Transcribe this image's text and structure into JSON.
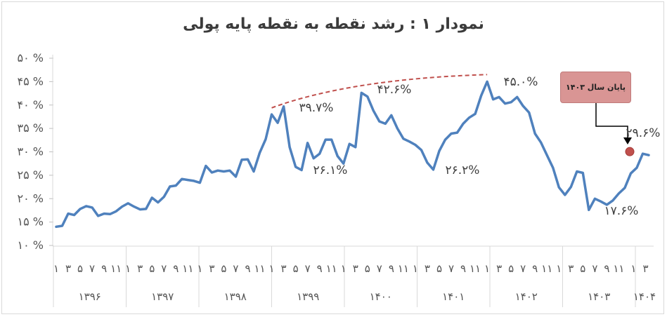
{
  "title": "نمودار ۱ : رشد نقطه به نقطه پایه پولی",
  "callout": {
    "text": "پایان سال ۱۴۰۳"
  },
  "chart_data": {
    "type": "line",
    "title": "نمودار ۱ : رشد نقطه به نقطه پایه پولی",
    "ylim": [
      10,
      50
    ],
    "yticks": [
      "۱۰ %",
      "۱۵ %",
      "۲۰ %",
      "۲۵ %",
      "۳۰ %",
      "۳۵ %",
      "۴۰ %",
      "۴۵ %",
      "۵۰ %"
    ],
    "grid": false,
    "month_tick_labels": [
      "۱",
      "۳",
      "۵",
      "۷",
      "۹",
      "۱۱"
    ],
    "last_year_month_labels": [
      "۱",
      "۳"
    ],
    "years": [
      "۱۳۹۶",
      "۱۳۹۷",
      "۱۳۹۸",
      "۱۳۹۹",
      "۱۴۰۰",
      "۱۴۰۱",
      "۱۴۰۲",
      "۱۴۰۳",
      "۱۴۰۴"
    ],
    "series": [
      {
        "color": "#4f81bd",
        "values": [
          14.0,
          14.2,
          16.8,
          16.5,
          17.8,
          18.4,
          18.1,
          16.3,
          16.8,
          16.7,
          17.3,
          18.3,
          19.0,
          18.3,
          17.7,
          17.8,
          20.2,
          19.2,
          20.4,
          22.6,
          22.8,
          24.2,
          24.0,
          23.8,
          23.4,
          27.0,
          25.6,
          26.0,
          25.8,
          26.0,
          24.7,
          28.3,
          28.4,
          25.8,
          29.8,
          32.7,
          38.0,
          36.2,
          39.7,
          31.0,
          26.8,
          26.1,
          31.9,
          28.6,
          29.6,
          32.6,
          32.6,
          29.1,
          27.5,
          31.7,
          31.0,
          42.6,
          41.8,
          38.8,
          36.5,
          36.0,
          37.8,
          35.0,
          32.8,
          32.2,
          31.5,
          30.4,
          27.7,
          26.2,
          30.2,
          32.6,
          33.9,
          34.1,
          36.0,
          37.3,
          38.1,
          42.0,
          45.0,
          41.2,
          41.7,
          40.3,
          40.6,
          41.7,
          39.8,
          38.4,
          33.9,
          32.0,
          29.3,
          26.6,
          22.4,
          20.8,
          22.5,
          25.8,
          25.5,
          17.6,
          20.0,
          19.4,
          18.7,
          19.6,
          21.1,
          22.3,
          25.4,
          26.6,
          29.6,
          29.3
        ]
      }
    ],
    "data_labels": [
      "۳۹.۷%",
      "۲۶.۱%",
      "۴۲.۶%",
      "۲۶.۲%",
      "۴۵.۰%",
      "۱۷.۶%",
      "۲۹.۶%"
    ],
    "trend_line": {
      "style": "dashed",
      "color": "#c0504d",
      "from": 39.7,
      "to": 46.5
    },
    "marker": {
      "color": "#c0504d",
      "value": 29.6
    }
  }
}
